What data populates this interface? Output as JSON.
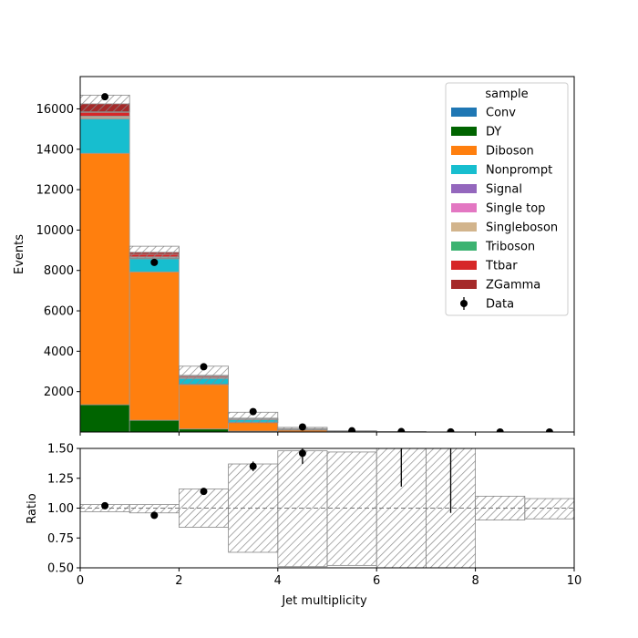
{
  "chart_data": [
    {
      "type": "bar",
      "stacked": true,
      "xlabel": "Jet multiplicity",
      "ylabel": "Events",
      "xlim": [
        0,
        10
      ],
      "ylim": [
        0,
        17600
      ],
      "bin_edges": [
        0,
        1,
        2,
        3,
        4,
        5,
        6,
        7,
        8,
        9,
        10
      ],
      "yticks": [
        2000,
        4000,
        6000,
        8000,
        10000,
        12000,
        14000,
        16000
      ],
      "legend_title": "sample",
      "legend_position": "top-right",
      "series": [
        {
          "name": "Conv",
          "color": "#1f77b4",
          "values": [
            0,
            0,
            0,
            0,
            0,
            0,
            0,
            0,
            0,
            0
          ]
        },
        {
          "name": "DY",
          "color": "#006400",
          "values": [
            1350,
            580,
            150,
            40,
            10,
            3,
            1,
            0,
            0,
            0
          ]
        },
        {
          "name": "Diboson",
          "color": "#ff7f0e",
          "values": [
            12450,
            7350,
            2200,
            450,
            90,
            20,
            5,
            1,
            0,
            0
          ]
        },
        {
          "name": "Nonprompt",
          "color": "#17becf",
          "values": [
            1700,
            650,
            300,
            120,
            40,
            10,
            3,
            1,
            0,
            0
          ]
        },
        {
          "name": "Signal",
          "color": "#9467bd",
          "values": [
            10,
            10,
            5,
            3,
            1,
            0,
            0,
            0,
            0,
            0
          ]
        },
        {
          "name": "Single top",
          "color": "#e377c2",
          "values": [
            20,
            10,
            10,
            5,
            2,
            0,
            0,
            0,
            0,
            0
          ]
        },
        {
          "name": "Singleboson",
          "color": "#d2b48c",
          "values": [
            80,
            40,
            20,
            10,
            3,
            1,
            0,
            0,
            0,
            0
          ]
        },
        {
          "name": "Triboson",
          "color": "#3cb371",
          "values": [
            30,
            30,
            30,
            20,
            10,
            3,
            1,
            0,
            0,
            0
          ]
        },
        {
          "name": "Ttbar",
          "color": "#d62728",
          "values": [
            190,
            130,
            60,
            30,
            10,
            3,
            1,
            0,
            0,
            0
          ]
        },
        {
          "name": "ZGamma",
          "color": "#a52a2a",
          "values": [
            420,
            100,
            35,
            12,
            4,
            1,
            0,
            0,
            0,
            0
          ]
        }
      ],
      "uncertainty_band": {
        "up": [
          16680,
          9200,
          3260,
          980,
          230,
          60,
          15,
          4,
          1,
          1
        ],
        "down": [
          15860,
          8600,
          2370,
          460,
          90,
          20,
          5,
          1,
          0.5,
          0.5
        ]
      },
      "data_points": {
        "name": "Data",
        "x": [
          0.5,
          1.5,
          2.5,
          3.5,
          4.5,
          5.5,
          6.5,
          7.5,
          8.5,
          9.5
        ],
        "y": [
          16600,
          8400,
          3230,
          1010,
          250,
          60,
          20,
          6,
          2,
          1
        ]
      }
    },
    {
      "type": "line",
      "xlabel": "Jet multiplicity",
      "ylabel": "Ratio",
      "xlim": [
        0,
        10
      ],
      "ylim": [
        0.5,
        1.5
      ],
      "xticks": [
        0,
        2,
        4,
        6,
        8,
        10
      ],
      "yticks": [
        0.5,
        0.75,
        1.0,
        1.25,
        1.5
      ],
      "ytick_labels": [
        "0.50",
        "0.75",
        "1.00",
        "1.25",
        "1.50"
      ],
      "reference_line": 1.0,
      "uncertainty_band": {
        "up": [
          1.03,
          1.03,
          1.16,
          1.37,
          1.48,
          1.47,
          1.5,
          1.5,
          1.1,
          1.08
        ],
        "down": [
          0.97,
          0.96,
          0.84,
          0.63,
          0.51,
          0.52,
          0.5,
          0.5,
          0.9,
          0.91
        ]
      },
      "points": {
        "x": [
          0.5,
          1.5,
          2.5,
          3.5,
          4.5
        ],
        "y": [
          1.02,
          0.94,
          1.14,
          1.35,
          1.46
        ],
        "err": [
          0.008,
          0.011,
          0.02,
          0.04,
          0.09
        ]
      },
      "offscale_error_bars": [
        {
          "x": 6.5,
          "low": 1.18
        },
        {
          "x": 7.5,
          "low": 0.96
        }
      ]
    }
  ]
}
